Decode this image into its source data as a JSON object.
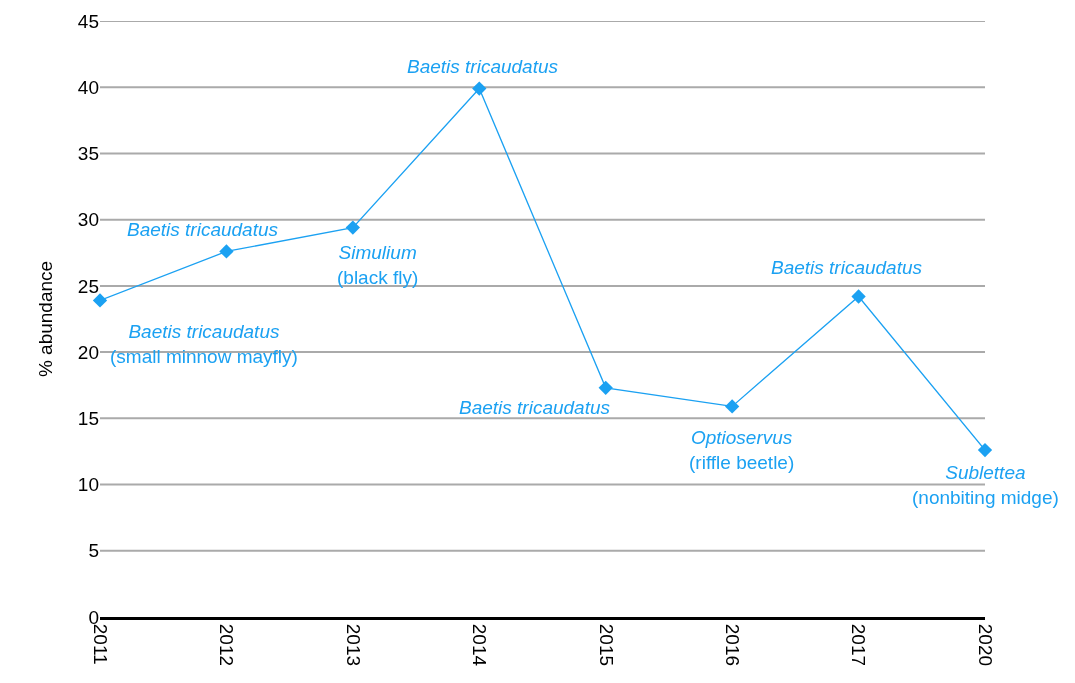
{
  "chart_data": {
    "type": "line",
    "ylabel": "% abundance",
    "categories": [
      "2011",
      "2012",
      "2013",
      "2014",
      "2015",
      "2016",
      "2017",
      "2020"
    ],
    "series": [
      {
        "color": "#1ba1f2",
        "values": [
          23.9,
          27.6,
          29.4,
          39.9,
          17.3,
          15.9,
          24.2,
          12.6
        ]
      }
    ],
    "ylim": [
      0,
      45
    ],
    "yticks": [
      0,
      5,
      10,
      15,
      20,
      25,
      30,
      35,
      40,
      45
    ],
    "grid": "y",
    "marker": "diamond",
    "line_style": "solid",
    "annotations": [
      {
        "text": "Baetis tricaudatus\n(small minnow mayfly)",
        "x": "2011",
        "y": 23.9
      },
      {
        "text": "Baetis tricaudatus",
        "x": "2012",
        "y": 27.6
      },
      {
        "text": "Simulium\n(black fly)",
        "x": "2013",
        "y": 29.4
      },
      {
        "text": "Baetis tricaudatus",
        "x": "2014",
        "y": 39.9
      },
      {
        "text": "Baetis tricaudatus",
        "x": "2015",
        "y": 17.3
      },
      {
        "text": "Optioservus\n(riffle beetle)",
        "x": "2016",
        "y": 15.9
      },
      {
        "text": "Baetis tricaudatus",
        "x": "2017",
        "y": 24.2
      },
      {
        "text": "Sublettea\n(nonbiting midge)",
        "x": "2020",
        "y": 12.6
      }
    ]
  }
}
